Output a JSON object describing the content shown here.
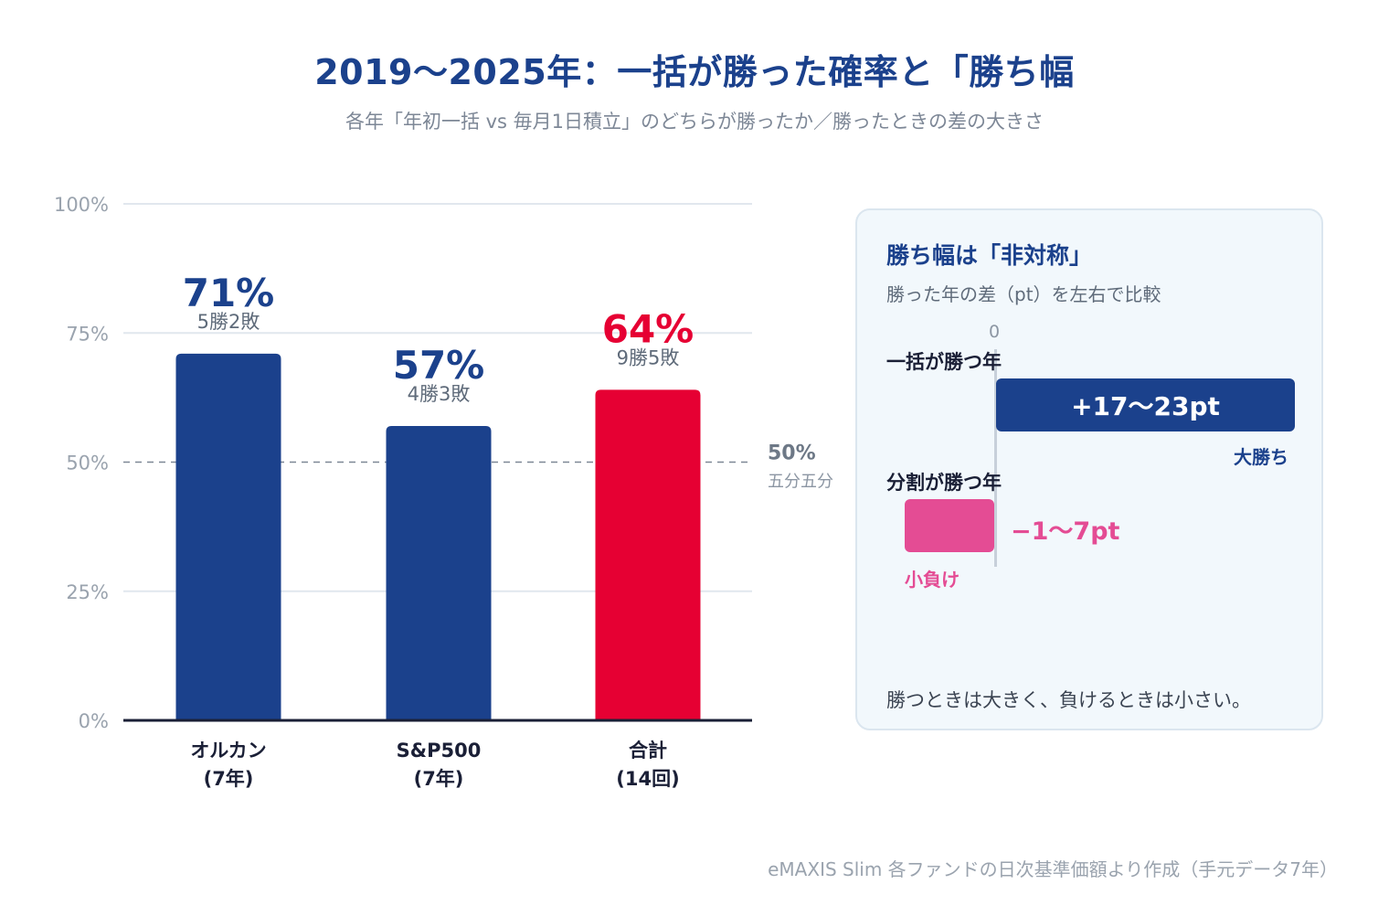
{
  "title": "2019〜2025年：一括が勝った確率と「勝ち幅",
  "subtitle": "各年「年初一括 vs 毎月1日積立」のどちらが勝ったか／勝ったときの差の大きさ",
  "chart_data": {
    "type": "bar",
    "categories": [
      {
        "line1": "オルカン",
        "line2": "(7年)"
      },
      {
        "line1": "S&P500",
        "line2": "(7年)"
      },
      {
        "line1": "合計",
        "line2": "(14回)"
      }
    ],
    "values": [
      71,
      57,
      64
    ],
    "value_labels": [
      "71%",
      "57%",
      "64%"
    ],
    "record_labels": [
      "5勝2敗",
      "4勝3敗",
      "9勝5敗"
    ],
    "bar_colors": [
      "#1b418c",
      "#1b418c",
      "#e60033"
    ],
    "label_colors": [
      "#1b418c",
      "#1b418c",
      "#e60033"
    ],
    "ylim": [
      0,
      100
    ],
    "yticks": [
      0,
      25,
      50,
      75,
      100
    ],
    "ytick_labels": [
      "0%",
      "25%",
      "50%",
      "75%",
      "100%"
    ],
    "reference_line": {
      "value": 50,
      "label": "50%",
      "sublabel": "五分五分"
    },
    "grid": true
  },
  "panel": {
    "title": "勝ち幅は「非対称」",
    "subtitle": "勝った年の差（pt）を左右で比較",
    "zero_label": "0",
    "positive": {
      "label": "一括が勝つ年",
      "value_text": "+17〜23pt",
      "tag": "大勝ち",
      "color": "#1b418c"
    },
    "negative": {
      "label": "分割が勝つ年",
      "value_text": "−1〜7pt",
      "tag": "小負け",
      "color": "#e44c94"
    },
    "note": "勝つときは大きく、負けるときは小さい。"
  },
  "source": "eMAXIS Slim 各ファンドの日次基準価額より作成（手元データ7年）"
}
